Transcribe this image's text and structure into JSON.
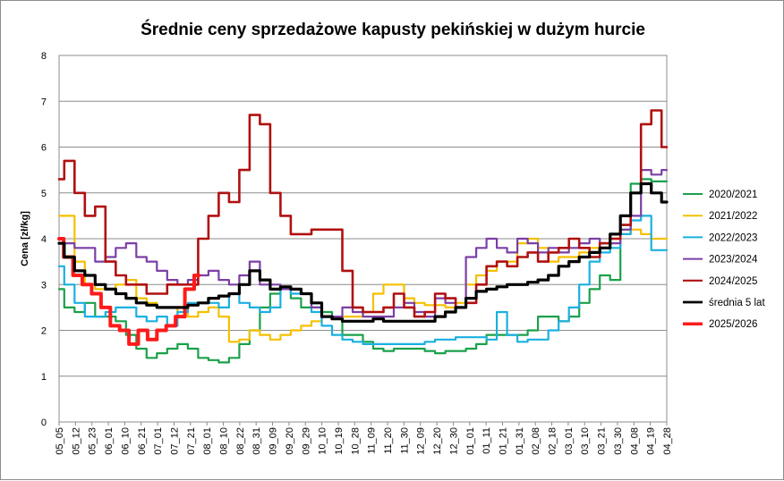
{
  "chart_data": {
    "type": "line",
    "title": "Średnie ceny sprzedażowe kapusty pekińskiej w dużym hurcie",
    "ylabel": "Cena [zł/kg]",
    "xlabel": "",
    "ylim": [
      0,
      8
    ],
    "yticks": [
      "0",
      "1",
      "2",
      "3",
      "4",
      "5",
      "6",
      "7",
      "8"
    ],
    "grid": "horizontal",
    "legend_position": "right",
    "x_tick_labels": [
      "05_05",
      "05_12",
      "05_23",
      "06_01",
      "06_10",
      "06_21",
      "07_01",
      "07_12",
      "07_21",
      "08_01",
      "08_10",
      "08_22",
      "08_31",
      "09_09",
      "09_20",
      "09_29",
      "10_10",
      "10_19",
      "10_28",
      "11_09",
      "11_20",
      "11_30",
      "12_09",
      "12_20",
      "12_30",
      "01_01",
      "01_11",
      "01_21",
      "01_31",
      "02_08",
      "02_18",
      "03_01",
      "03_10",
      "03_21",
      "03_30",
      "04_08",
      "04_19",
      "04_28"
    ],
    "series": [
      {
        "name": "2020/2021",
        "color": "#1aa14a",
        "width": 2.2,
        "values": [
          2.9,
          2.5,
          2.4,
          2.6,
          2.3,
          2.3,
          2.2,
          1.9,
          1.6,
          1.4,
          1.5,
          1.6,
          1.7,
          1.6,
          1.4,
          1.35,
          1.3,
          1.4,
          1.7,
          2.0,
          2.5,
          2.8,
          2.9,
          2.7,
          2.5,
          2.5,
          2.4,
          2.3,
          1.9,
          1.9,
          1.75,
          1.6,
          1.55,
          1.6,
          1.6,
          1.6,
          1.55,
          1.5,
          1.55,
          1.55,
          1.6,
          1.7,
          1.9,
          1.9,
          1.9,
          1.9,
          2.0,
          2.3,
          2.3,
          2.2,
          2.3,
          2.6,
          2.9,
          3.2,
          3.1,
          4.2,
          5.2,
          5.3,
          5.25,
          5.25
        ]
      },
      {
        "name": "2021/2022",
        "color": "#f5c000",
        "width": 2.2,
        "values": [
          4.5,
          4.5,
          3.5,
          3.0,
          2.9,
          2.9,
          3.0,
          3.1,
          2.7,
          2.6,
          2.5,
          2.5,
          2.4,
          2.3,
          2.4,
          2.5,
          2.3,
          1.75,
          1.8,
          2.0,
          1.9,
          1.8,
          1.9,
          2.0,
          2.1,
          2.2,
          2.3,
          2.3,
          2.3,
          2.3,
          2.4,
          2.8,
          3.0,
          3.0,
          2.7,
          2.6,
          2.55,
          2.55,
          2.5,
          2.6,
          3.0,
          3.2,
          3.3,
          3.5,
          3.5,
          3.9,
          4.0,
          3.8,
          3.5,
          3.6,
          3.6,
          3.7,
          3.8,
          3.9,
          4.0,
          4.1,
          4.2,
          4.1,
          4.0,
          4.0
        ]
      },
      {
        "name": "2022/2023",
        "color": "#1ab0e0",
        "width": 2.2,
        "values": [
          3.4,
          3.0,
          2.6,
          2.3,
          2.3,
          2.4,
          2.5,
          2.5,
          2.3,
          2.2,
          2.3,
          2.1,
          2.4,
          2.6,
          2.6,
          2.6,
          2.5,
          2.8,
          2.6,
          2.5,
          2.4,
          2.5,
          2.9,
          2.8,
          2.8,
          2.4,
          2.1,
          1.9,
          1.8,
          1.75,
          1.7,
          1.7,
          1.7,
          1.7,
          1.7,
          1.7,
          1.75,
          1.8,
          1.8,
          1.85,
          1.85,
          1.85,
          1.8,
          2.4,
          1.9,
          1.75,
          1.8,
          1.8,
          2.0,
          2.2,
          2.5,
          3.0,
          3.5,
          3.7,
          3.8,
          4.1,
          4.4,
          4.5,
          3.75,
          3.75
        ]
      },
      {
        "name": "2023/2024",
        "color": "#7b3fa5",
        "width": 2.2,
        "values": [
          4.0,
          3.9,
          3.8,
          3.8,
          3.5,
          3.6,
          3.8,
          3.9,
          3.6,
          3.5,
          3.3,
          3.1,
          3.0,
          3.1,
          3.2,
          3.3,
          3.1,
          3.0,
          3.2,
          3.5,
          3.0,
          3.0,
          2.9,
          2.9,
          2.8,
          2.5,
          2.3,
          2.3,
          2.5,
          2.4,
          2.3,
          2.3,
          2.3,
          2.5,
          2.6,
          2.4,
          2.3,
          2.7,
          2.6,
          2.5,
          3.6,
          3.8,
          4.0,
          3.8,
          3.7,
          4.0,
          3.9,
          3.7,
          3.8,
          3.7,
          3.8,
          3.9,
          4.0,
          3.9,
          3.9,
          4.2,
          4.5,
          5.5,
          5.4,
          5.5
        ]
      },
      {
        "name": "2024/2025",
        "color": "#b01010",
        "width": 2.6,
        "values": [
          5.3,
          5.7,
          5.0,
          4.5,
          4.7,
          3.5,
          3.2,
          3.0,
          3.0,
          2.8,
          2.8,
          3.0,
          3.0,
          3.0,
          4.0,
          4.5,
          5.0,
          4.8,
          5.5,
          6.7,
          6.5,
          5.0,
          4.5,
          4.1,
          4.1,
          4.2,
          4.2,
          4.2,
          3.3,
          2.5,
          2.4,
          2.4,
          2.5,
          2.8,
          2.5,
          2.3,
          2.4,
          2.8,
          2.7,
          2.5,
          2.6,
          3.0,
          3.4,
          3.5,
          3.4,
          3.6,
          3.7,
          3.5,
          3.7,
          3.8,
          4.0,
          3.8,
          3.6,
          3.9,
          4.0,
          4.3,
          5.0,
          6.5,
          6.8,
          6.0
        ]
      },
      {
        "name": "średnia 5 lat",
        "color": "#000000",
        "width": 3.2,
        "values": [
          3.9,
          3.6,
          3.3,
          3.2,
          3.0,
          2.9,
          2.8,
          2.7,
          2.6,
          2.55,
          2.5,
          2.5,
          2.5,
          2.55,
          2.6,
          2.7,
          2.75,
          2.8,
          3.0,
          3.3,
          3.1,
          2.9,
          2.95,
          2.9,
          2.8,
          2.6,
          2.3,
          2.25,
          2.2,
          2.2,
          2.2,
          2.25,
          2.2,
          2.2,
          2.2,
          2.2,
          2.2,
          2.3,
          2.4,
          2.5,
          2.7,
          2.85,
          2.9,
          2.95,
          3.0,
          3.0,
          3.05,
          3.1,
          3.2,
          3.4,
          3.5,
          3.6,
          3.7,
          3.8,
          4.1,
          4.5,
          5.0,
          5.2,
          5.0,
          4.8
        ]
      },
      {
        "name": "2025/2026",
        "color": "#ff1a1a",
        "width": 4.0,
        "values": [
          4.0,
          3.6,
          3.2,
          3.0,
          2.8,
          2.5,
          2.1,
          2.0,
          1.7,
          2.0,
          1.8,
          2.0,
          2.1,
          2.3,
          2.9,
          3.2
        ],
        "x_end_fraction": 0.23
      }
    ]
  }
}
